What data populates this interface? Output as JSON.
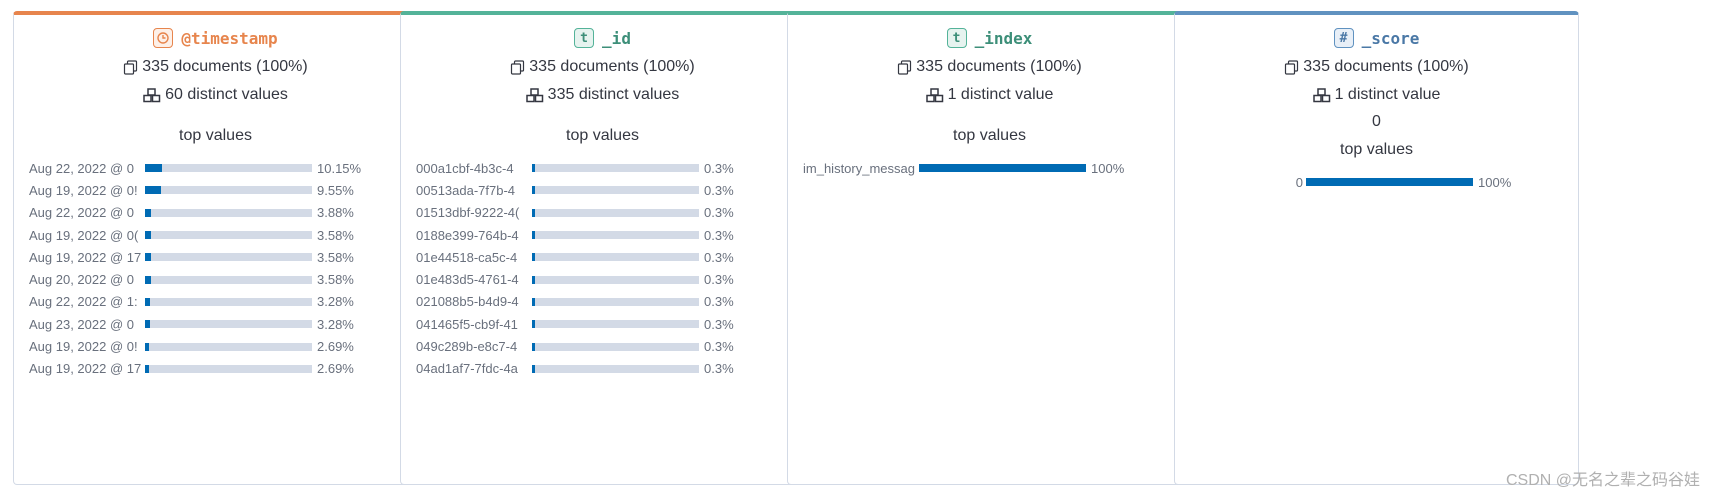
{
  "colors": {
    "accent_date": "#e7854d",
    "accent_string": "#54b399",
    "accent_number": "#6092c0",
    "bar_fill": "#006bb4",
    "bar_track": "#d3dae6"
  },
  "cards": [
    {
      "type_icon": "⏲",
      "field": "@timestamp",
      "documents": "335 documents (100%)",
      "distinct": "60 distinct values",
      "top_title": "top values",
      "top_values": [
        {
          "label": "Aug 22, 2022 @ 0",
          "pct": "10.15%",
          "fraction": 0.1015
        },
        {
          "label": "Aug 19, 2022 @ 0!",
          "pct": "9.55%",
          "fraction": 0.0955
        },
        {
          "label": "Aug 22, 2022 @ 0",
          "pct": "3.88%",
          "fraction": 0.0388
        },
        {
          "label": "Aug 19, 2022 @ 0(",
          "pct": "3.58%",
          "fraction": 0.0358
        },
        {
          "label": "Aug 19, 2022 @ 17",
          "pct": "3.58%",
          "fraction": 0.0358
        },
        {
          "label": "Aug 20, 2022 @ 0",
          "pct": "3.58%",
          "fraction": 0.0358
        },
        {
          "label": "Aug 22, 2022 @ 1:",
          "pct": "3.28%",
          "fraction": 0.0328
        },
        {
          "label": "Aug 23, 2022 @ 0",
          "pct": "3.28%",
          "fraction": 0.0328
        },
        {
          "label": "Aug 19, 2022 @ 0!",
          "pct": "2.69%",
          "fraction": 0.0269
        },
        {
          "label": "Aug 19, 2022 @ 17",
          "pct": "2.69%",
          "fraction": 0.0269
        }
      ]
    },
    {
      "type_icon": "t",
      "field": "_id",
      "documents": "335 documents (100%)",
      "distinct": "335 distinct values",
      "top_title": "top values",
      "top_values": [
        {
          "label": "000a1cbf-4b3c-4",
          "pct": "0.3%",
          "fraction": 0.003
        },
        {
          "label": "00513ada-7f7b-4",
          "pct": "0.3%",
          "fraction": 0.003
        },
        {
          "label": "01513dbf-9222-4(",
          "pct": "0.3%",
          "fraction": 0.003
        },
        {
          "label": "0188e399-764b-4",
          "pct": "0.3%",
          "fraction": 0.003
        },
        {
          "label": "01e44518-ca5c-4",
          "pct": "0.3%",
          "fraction": 0.003
        },
        {
          "label": "01e483d5-4761-4",
          "pct": "0.3%",
          "fraction": 0.003
        },
        {
          "label": "021088b5-b4d9-4",
          "pct": "0.3%",
          "fraction": 0.003
        },
        {
          "label": "041465f5-cb9f-41",
          "pct": "0.3%",
          "fraction": 0.003
        },
        {
          "label": "049c289b-e8c7-4",
          "pct": "0.3%",
          "fraction": 0.003
        },
        {
          "label": "04ad1af7-7fdc-4a",
          "pct": "0.3%",
          "fraction": 0.003
        }
      ]
    },
    {
      "type_icon": "t",
      "field": "_index",
      "documents": "335 documents (100%)",
      "distinct": "1 distinct value",
      "top_title": "top values",
      "top_values": [
        {
          "label": "im_history_messag",
          "pct": "100%",
          "fraction": 1.0
        }
      ]
    },
    {
      "type_icon": "#",
      "field": "_score",
      "documents": "335 documents (100%)",
      "distinct": "1 distinct value",
      "value": "0",
      "top_title": "top values",
      "top_values": [
        {
          "label": "0",
          "pct": "100%",
          "fraction": 1.0
        }
      ]
    }
  ],
  "watermark": "CSDN @无名之辈之码谷娃"
}
